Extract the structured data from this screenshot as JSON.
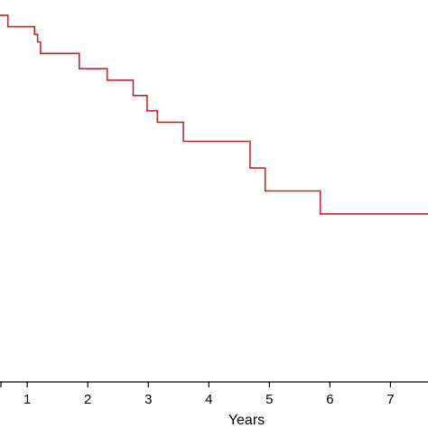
{
  "chart_data": {
    "type": "line",
    "step": true,
    "xlabel": "Years",
    "ylabel": "",
    "xlim": [
      0.55,
      7.62
    ],
    "ylim": [
      0,
      1
    ],
    "grid": false,
    "x_ticks": [
      1,
      2,
      3,
      4,
      5,
      6,
      7
    ],
    "series": [
      {
        "color": "#c0272d",
        "points": [
          [
            0.55,
            0.96
          ],
          [
            0.68,
            0.96
          ],
          [
            0.68,
            0.93
          ],
          [
            1.12,
            0.93
          ],
          [
            1.12,
            0.91
          ],
          [
            1.17,
            0.91
          ],
          [
            1.17,
            0.89
          ],
          [
            1.22,
            0.89
          ],
          [
            1.22,
            0.86
          ],
          [
            1.86,
            0.86
          ],
          [
            1.86,
            0.82
          ],
          [
            2.32,
            0.82
          ],
          [
            2.32,
            0.79
          ],
          [
            2.75,
            0.79
          ],
          [
            2.75,
            0.75
          ],
          [
            2.98,
            0.75
          ],
          [
            2.98,
            0.71
          ],
          [
            3.15,
            0.71
          ],
          [
            3.15,
            0.68
          ],
          [
            3.58,
            0.68
          ],
          [
            3.58,
            0.63
          ],
          [
            4.68,
            0.63
          ],
          [
            4.68,
            0.56
          ],
          [
            4.93,
            0.56
          ],
          [
            4.93,
            0.5
          ],
          [
            5.84,
            0.5
          ],
          [
            5.84,
            0.44
          ],
          [
            7.62,
            0.44
          ]
        ]
      }
    ]
  }
}
